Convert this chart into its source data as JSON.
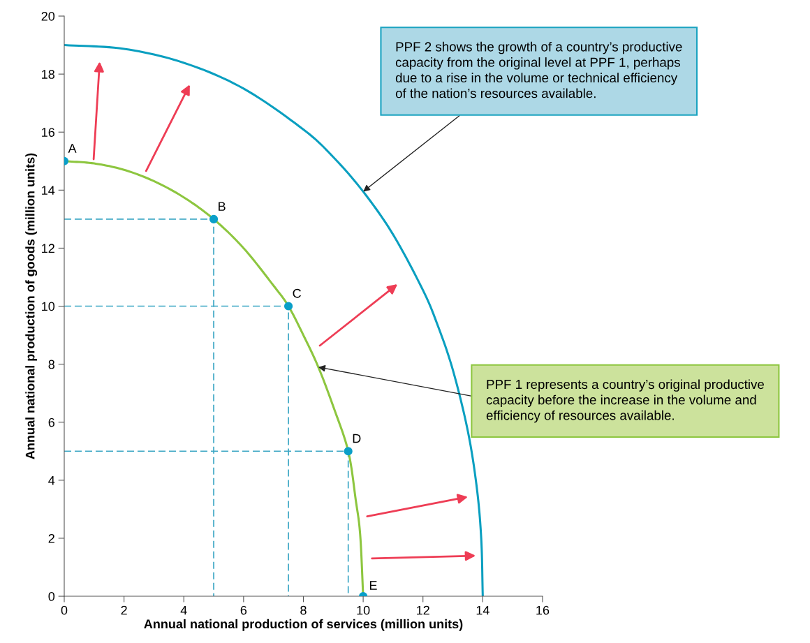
{
  "chart_data": {
    "type": "line",
    "xlabel": "Annual national production of services (million units)",
    "ylabel": "Annual national production of goods (million units)",
    "xlim": [
      0,
      16
    ],
    "xticks": [
      0,
      2,
      4,
      6,
      8,
      10,
      12,
      14,
      16
    ],
    "ylim": [
      0,
      20
    ],
    "yticks": [
      0,
      2,
      4,
      6,
      8,
      10,
      12,
      14,
      16,
      18,
      20
    ],
    "grid": false,
    "legend": false,
    "series": [
      {
        "color": "#3aa6c4",
        "line_style": "dashed",
        "x": [
          0,
          5,
          5
        ],
        "values": [
          13,
          13,
          0
        ]
      },
      {
        "color": "#3aa6c4",
        "line_style": "dashed",
        "x": [
          0,
          7.5,
          7.5
        ],
        "values": [
          10,
          10,
          0
        ]
      },
      {
        "color": "#3aa6c4",
        "line_style": "dashed",
        "x": [
          0,
          9.5,
          9.5
        ],
        "values": [
          5,
          5,
          0
        ]
      },
      {
        "color": "#8dc63f",
        "line_style": "solid",
        "x": [
          0,
          1,
          2,
          3,
          4,
          5,
          6,
          7,
          7.5,
          8,
          8.5,
          9,
          9.5,
          9.75,
          9.9,
          10
        ],
        "values": [
          15,
          14.92,
          14.7,
          14.31,
          13.75,
          13,
          12,
          10.71,
          10,
          9,
          7.9,
          6.54,
          5,
          3.33,
          2.12,
          0
        ]
      },
      {
        "color": "#0a9fc0",
        "line_style": "solid",
        "x": [
          0,
          2,
          4,
          6,
          8,
          9,
          10,
          11,
          12,
          12.5,
          13,
          13.5,
          13.8,
          13.95,
          14
        ],
        "values": [
          19,
          18.87,
          18.39,
          17.5,
          16.09,
          15.14,
          13.95,
          12.47,
          10.55,
          9.32,
          7.8,
          5.7,
          3.75,
          1.97,
          0
        ]
      },
      {
        "type": "scatter",
        "color": "#0a9fc8",
        "marker": "circle",
        "x": [
          0,
          5,
          7.5,
          9.5,
          10
        ],
        "values": [
          15,
          13,
          10,
          5,
          0
        ]
      }
    ],
    "annotations": [
      {
        "text": "A",
        "x": 0,
        "y": 15
      },
      {
        "text": "B",
        "x": 5,
        "y": 13
      },
      {
        "text": "C",
        "x": 7.5,
        "y": 10
      },
      {
        "text": "D",
        "x": 9.5,
        "y": 5
      },
      {
        "text": "E",
        "x": 10,
        "y": 0
      },
      "PPF 2 shows the growth of a country’s productive\ncapacity from the original level at PPF 1, perhaps\ndue to a rise in the volume or technical efficiency\nof the nation’s resources available.",
      {
        "text": "PPF 1 represents a country’s original productive\ncapacity before the increase in the volume and\nefficiency of resources available.",
        "x": 8.5,
        "y": 7.9
      }
    ]
  }
}
